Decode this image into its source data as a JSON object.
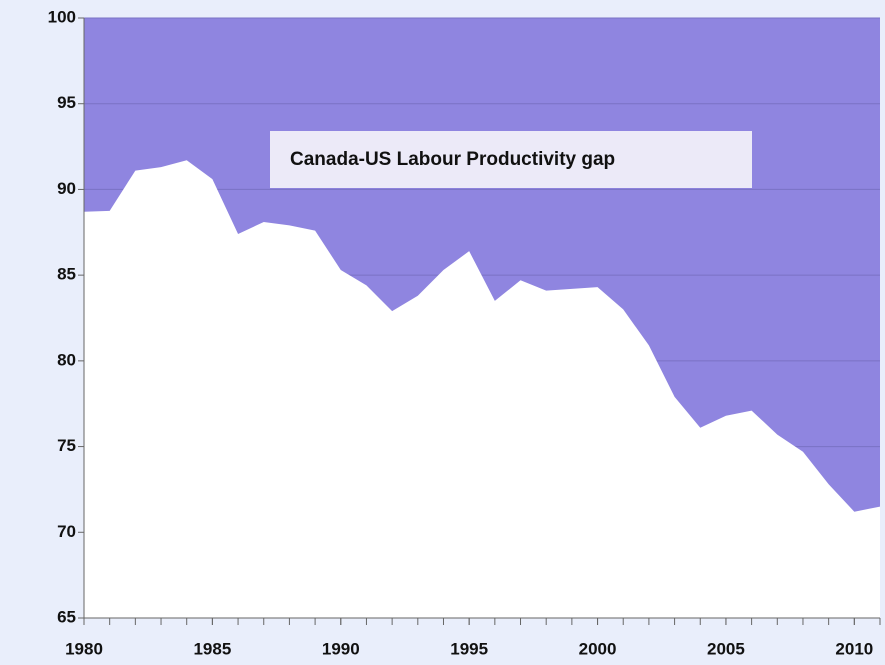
{
  "chart_data": {
    "type": "area",
    "annotation": "Canada-US Labour Productivity gap",
    "x": [
      1980,
      1981,
      1982,
      1983,
      1984,
      1985,
      1986,
      1987,
      1988,
      1989,
      1990,
      1991,
      1992,
      1993,
      1994,
      1995,
      1996,
      1997,
      1998,
      1999,
      2000,
      2001,
      2002,
      2003,
      2004,
      2005,
      2006,
      2007,
      2008,
      2009,
      2010,
      2011
    ],
    "values": [
      88.7,
      88.75,
      91.1,
      91.3,
      91.7,
      90.6,
      87.4,
      88.1,
      87.9,
      87.6,
      85.3,
      84.4,
      82.9,
      83.8,
      85.3,
      86.4,
      83.5,
      84.7,
      84.1,
      84.2,
      84.3,
      83.0,
      80.9,
      77.9,
      76.1,
      76.8,
      77.1,
      75.7,
      74.7,
      72.8,
      71.2,
      71.5
    ],
    "color": "#ffffff",
    "gap_color": "#8f85e0",
    "xlim": [
      1980,
      2011
    ],
    "xticks": [
      1980,
      1985,
      1990,
      1995,
      2000,
      2005,
      2010
    ],
    "ylim": [
      65,
      100
    ],
    "yticks": [
      65,
      70,
      75,
      80,
      85,
      90,
      95,
      100
    ],
    "grid": true
  }
}
